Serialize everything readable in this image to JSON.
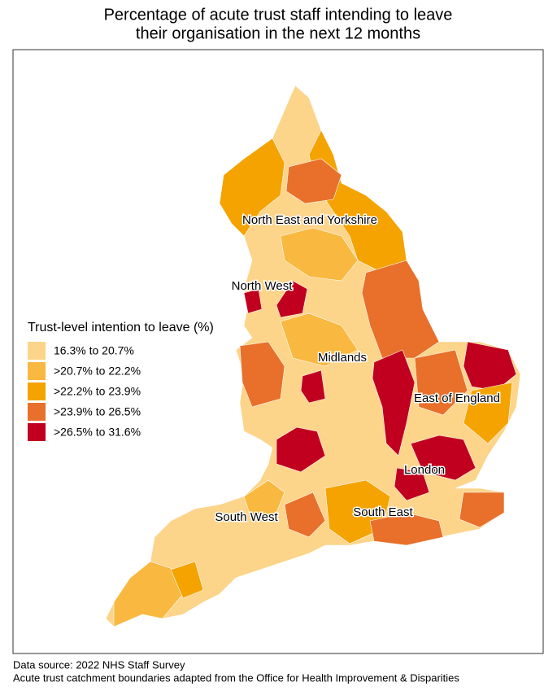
{
  "title": [
    "Percentage of acute trust staff intending to leave",
    "their organisation in the next 12 months"
  ],
  "legend": {
    "title": "Trust-level intention to leave (%)",
    "items": [
      {
        "label": "16.3% to 20.7%",
        "color": "#fcd48a"
      },
      {
        "label": ">20.7% to 22.2%",
        "color": "#f9b840"
      },
      {
        "label": ">22.2% to 23.9%",
        "color": "#f4a300"
      },
      {
        "label": ">23.9% to 26.5%",
        "color": "#e8702a"
      },
      {
        "label": ">26.5% to 31.6%",
        "color": "#c0001e"
      }
    ]
  },
  "regions": [
    "North East and Yorkshire",
    "North West",
    "Midlands",
    "East of England",
    "London",
    "South East",
    "South West"
  ],
  "footnotes": [
    "Data source: 2022 NHS Staff Survey",
    "Acute trust catchment boundaries adapted from the Office for Health Improvement & Disparities"
  ]
}
